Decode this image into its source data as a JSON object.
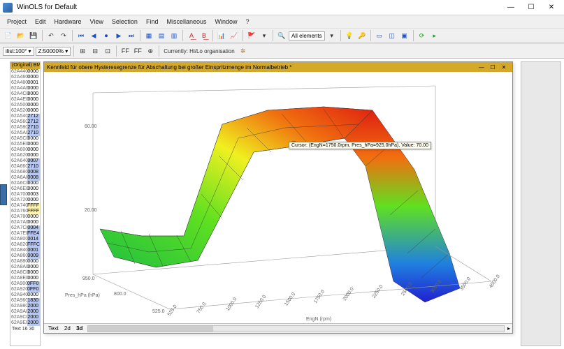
{
  "app": {
    "title": "WinOLS for Default"
  },
  "menu": [
    "Project",
    "Edit",
    "Hardware",
    "View",
    "Selection",
    "Find",
    "Miscellaneous",
    "Window",
    "?"
  ],
  "toolbar1": {
    "fields": {
      "list": "ilist:100° ▾",
      "zoom": "Z:50000% ▾"
    },
    "label_currently": "Currently: Hi/Lo organisation",
    "all_elements": "All elements"
  },
  "hexlist": {
    "header": "(Original) BMW",
    "rows": [
      {
        "a": "62A440",
        "v": "0000",
        "c": ""
      },
      {
        "a": "62A460",
        "v": "0000",
        "c": ""
      },
      {
        "a": "62A480",
        "v": "0001",
        "c": ""
      },
      {
        "a": "62A4A0",
        "v": "0000",
        "c": ""
      },
      {
        "a": "62A4C0",
        "v": "0000",
        "c": ""
      },
      {
        "a": "62A4E0",
        "v": "0000",
        "c": ""
      },
      {
        "a": "62A500",
        "v": "0000",
        "c": ""
      },
      {
        "a": "62A520",
        "v": "0000",
        "c": ""
      },
      {
        "a": "62A540",
        "v": "2712",
        "c": "hl-blue"
      },
      {
        "a": "62A560",
        "v": "2712",
        "c": "hl-blue"
      },
      {
        "a": "62A580",
        "v": "2710",
        "c": "hl-blue"
      },
      {
        "a": "62A5A0",
        "v": "2710",
        "c": "hl-blue"
      },
      {
        "a": "62A5C0",
        "v": "0000",
        "c": ""
      },
      {
        "a": "62A5E0",
        "v": "0000",
        "c": ""
      },
      {
        "a": "62A600",
        "v": "0000",
        "c": ""
      },
      {
        "a": "62A620",
        "v": "0000",
        "c": ""
      },
      {
        "a": "62A640",
        "v": "0007",
        "c": "hl-blue"
      },
      {
        "a": "62A660",
        "v": "2710",
        "c": "hl-blue"
      },
      {
        "a": "62A680",
        "v": "0008",
        "c": "hl-blue"
      },
      {
        "a": "62A6A0",
        "v": "0008",
        "c": "hl-blue"
      },
      {
        "a": "62A6C0",
        "v": "0000",
        "c": ""
      },
      {
        "a": "62A6E0",
        "v": "0000",
        "c": ""
      },
      {
        "a": "62A700",
        "v": "0003",
        "c": ""
      },
      {
        "a": "62A720",
        "v": "0000",
        "c": ""
      },
      {
        "a": "62A740",
        "v": "FFFF",
        "c": "hl-yellow"
      },
      {
        "a": "62A760",
        "v": "FFFF",
        "c": "hl-yellow"
      },
      {
        "a": "62A780",
        "v": "0000",
        "c": ""
      },
      {
        "a": "62A7A0",
        "v": "0000",
        "c": ""
      },
      {
        "a": "62A7C0",
        "v": "0004",
        "c": "hl-blue"
      },
      {
        "a": "62A7E0",
        "v": "FFE4",
        "c": "hl-blue"
      },
      {
        "a": "62A800",
        "v": "0014",
        "c": "hl-blue"
      },
      {
        "a": "62A820",
        "v": "FFFC",
        "c": "hl-blue"
      },
      {
        "a": "62A840",
        "v": "0001",
        "c": "hl-blue"
      },
      {
        "a": "62A860",
        "v": "0009",
        "c": "hl-blue"
      },
      {
        "a": "62A880",
        "v": "0000",
        "c": ""
      },
      {
        "a": "62A8A0",
        "v": "0000",
        "c": ""
      },
      {
        "a": "62A8C0",
        "v": "0000",
        "c": ""
      },
      {
        "a": "62A8E0",
        "v": "0000",
        "c": ""
      },
      {
        "a": "62A900",
        "v": "0FF0",
        "c": "hl-blue"
      },
      {
        "a": "62A920",
        "v": "0FF0",
        "c": "hl-blue"
      },
      {
        "a": "62A940",
        "v": "0000",
        "c": ""
      },
      {
        "a": "62A960",
        "v": "1830",
        "c": "hl-blue"
      },
      {
        "a": "62A980",
        "v": "2000",
        "c": "hl-blue"
      },
      {
        "a": "62A9A0",
        "v": "2000",
        "c": "hl-blue"
      },
      {
        "a": "62A9C0",
        "v": "2000",
        "c": "hl-blue"
      },
      {
        "a": "62A9E0",
        "v": "2000",
        "c": "hl-blue"
      }
    ],
    "footer": "Text   16   30"
  },
  "child": {
    "title": "Kennfeld für obere Hysteresegrenze für Abschaltung bei großer Einspritzmenge im Normalbetrieb *",
    "tabs": [
      "Text",
      "2d",
      "3d"
    ]
  },
  "chart": {
    "cursor_tip": "Cursor: (EngN=1750.0rpm, Pres_hPa=925.0hPa), Value: 70.00",
    "z_ticks": [
      "60.00",
      "20.00"
    ],
    "y_ticks": [
      "950.0",
      "800.0",
      "525.0"
    ],
    "y_label": "Pres_hPa (hPa)",
    "x_label": "EngN (rpm)",
    "x_ticks": [
      "525.0",
      "750.0",
      "1000.0",
      "1250.0",
      "1500.0",
      "1750.0",
      "2000.0",
      "2250.0",
      "2500.0",
      "3000.0",
      "3500.0",
      "4000.0"
    ],
    "gradient": {
      "low": "#2020d0",
      "low_mid": "#20c040",
      "mid": "#60e020",
      "high_mid": "#f0f020",
      "high": "#f07010",
      "peak": "#e02010"
    }
  }
}
